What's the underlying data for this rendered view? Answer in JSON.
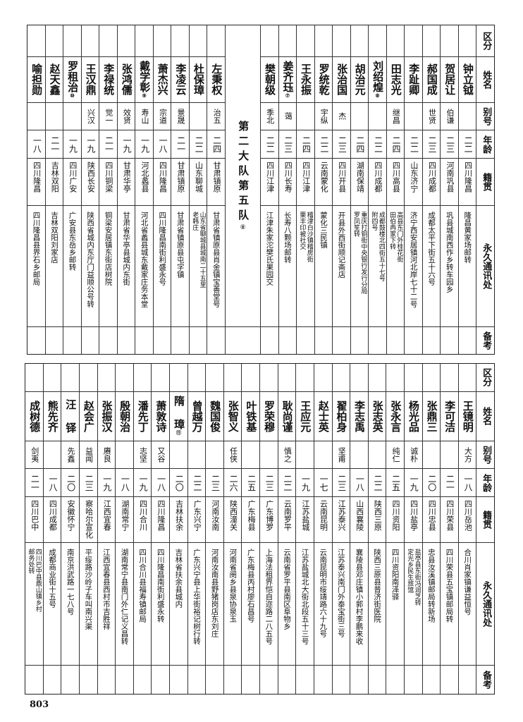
{
  "headers": [
    "区分",
    "姓名",
    "别号",
    "年龄",
    "籍贯",
    "永久通讯处",
    "备考"
  ],
  "top_table": {
    "section_label": "第二大队第五队",
    "section_note": "⑧",
    "right_rows": [
      {
        "name": "钟立钺",
        "note": "",
        "alias": "",
        "age": "二二",
        "native": "四川隆昌",
        "address": "隆昌黄家场邮转",
        "remark": ""
      },
      {
        "name": "贺居让",
        "note": "",
        "alias": "伯谦",
        "age": "二三",
        "native": "河南巩县",
        "address": "巩县城南西作乡转车园乡",
        "remark": ""
      },
      {
        "name": "郝国成",
        "note": "",
        "alias": "世贤",
        "age": "二三",
        "native": "四川成都",
        "address": "成都太平下街五十六号",
        "remark": ""
      },
      {
        "name": "李趾卿",
        "note": "",
        "alias": "",
        "age": "二二",
        "native": "山东济宁",
        "address": "济宁西安居镇河北岸七十二号",
        "remark": ""
      },
      {
        "name": "田志光",
        "note": "",
        "alias": "继昌",
        "age": "二四",
        "native": "四川高县",
        "address": "高县东门外桂花街\n田伯冉家下转",
        "remark": ""
      },
      {
        "name": "刘绍煌",
        "note": "⑧",
        "alias": "",
        "age": "二二",
        "native": "四川成都",
        "address": "成都鼓楼北四街五十七号\n附四号",
        "remark": ""
      },
      {
        "name": "胡治元",
        "note": "",
        "alias": "",
        "age": "二四",
        "native": "湖南保靖",
        "address": "重庆打铜街中央银行发行分局\n罗凤笙转",
        "remark": ""
      },
      {
        "name": "张治国",
        "note": "",
        "alias": "杰",
        "age": "二三",
        "native": "四川开县",
        "address": "开县外西街顺记斋店",
        "remark": ""
      },
      {
        "name": "罗统乾",
        "note": "",
        "alias": "宇纵",
        "age": "二二",
        "native": "云南蒙化",
        "address": "蒙化三民镇",
        "remark": ""
      },
      {
        "name": "王永振",
        "note": "",
        "alias": "",
        "age": "二四",
        "native": "四川江津",
        "address": "稽津白沙镇稽房街\n栗丰印被社交",
        "remark": ""
      },
      {
        "name": "姜齐珏",
        "note": "⑦",
        "alias": "蔼",
        "age": "二三",
        "native": "四川长寿",
        "address": "长寿八颗场邮转",
        "remark": ""
      },
      {
        "name": "樊朝级",
        "note": "",
        "alias": "季北",
        "age": "二二",
        "native": "四川江津",
        "address": "江津朱家沱樊氏果园交",
        "remark": ""
      }
    ],
    "left_rows": [
      {
        "name": "左秉权",
        "note": "",
        "alias": "治五",
        "age": "二四",
        "native": "甘肃镇原",
        "address": "甘肃省镇原县肖金镇宝善堂号",
        "remark": ""
      },
      {
        "name": "杜保璋",
        "note": "",
        "alias": "",
        "age": "二二",
        "native": "山东聊城",
        "address": "山东省聊城县城南二十五里\n老韩庄",
        "remark": ""
      },
      {
        "name": "李凌云",
        "note": "",
        "alias": "景晟",
        "age": "二一",
        "native": "甘肃镇原",
        "address": "甘肃省镇原县屯字镇",
        "remark": ""
      },
      {
        "name": "萧杰兴",
        "note": "",
        "alias": "宗道",
        "age": "一八",
        "native": "四川隆昌",
        "address": "四川隆昌南街利盛永号",
        "remark": ""
      },
      {
        "name": "戴学彰",
        "note": "⑨",
        "alias": "寿山",
        "age": "一九",
        "native": "河北蠡县",
        "address": "河北省蠡县城东戴家庄务本堂",
        "remark": ""
      },
      {
        "name": "张鸿儒",
        "note": "",
        "alias": "效贤",
        "age": "一九",
        "native": "甘肃华亭",
        "address": "甘肃省华亭县城内东街",
        "remark": ""
      },
      {
        "name": "李禄统",
        "note": "",
        "alias": "觉一",
        "age": "二一",
        "native": "四川铜梁",
        "address": "铜梁安居镇东街店树院",
        "remark": ""
      },
      {
        "name": "王汉鼎",
        "note": "",
        "alias": "兴汉",
        "age": "一九",
        "native": "陕西长安",
        "address": "陕西省城内东厅门益顺公号转",
        "remark": ""
      },
      {
        "name": "罗租治",
        "note": "⑩",
        "alias": "",
        "age": "一九",
        "native": "四川广安",
        "address": "广安县东岳乡邮转",
        "remark": ""
      },
      {
        "name": "赵天鑫",
        "note": "",
        "alias": "",
        "age": "二一",
        "native": "吉林双阳",
        "address": "吉林双阳刘家店",
        "remark": ""
      },
      {
        "name": "喻担勋",
        "note": "",
        "alias": "",
        "age": "一八",
        "native": "四川隆昌",
        "address": "四川隆昌县界石乡邮局",
        "remark": ""
      }
    ]
  },
  "bottom_table": {
    "rows": [
      {
        "name": "王镜明",
        "note": "",
        "alias": "大方",
        "age": "一八",
        "native": "四川岳池",
        "address": "合川肖家镇谦益恒号",
        "remark": ""
      },
      {
        "name": "李可洁",
        "note": "",
        "alias": "",
        "age": "二一",
        "native": "四川荣县",
        "address": "四川荣县五宝镇邮局转",
        "remark": ""
      },
      {
        "name": "张鼎三",
        "note": "",
        "alias": "",
        "age": "二〇",
        "native": "四川忠县",
        "address": "忠县汝溪镇邮局转新场",
        "remark": ""
      },
      {
        "name": "杨光品",
        "note": "",
        "alias": "诚朴",
        "age": "一九",
        "native": "四川盐亭",
        "address": "盐亭县东街冯润芝转\n定光乡民生旅馆",
        "remark": ""
      },
      {
        "name": "张永言",
        "note": "",
        "alias": "纯仁",
        "age": "二五",
        "native": "四川资阳",
        "address": "四川资阳南泽驿",
        "remark": ""
      },
      {
        "name": "张志英",
        "note": "",
        "alias": "",
        "age": "二二",
        "native": "陕西三原",
        "address": "陕西三原县普济街医院",
        "remark": ""
      },
      {
        "name": "李志禹",
        "note": "",
        "alias": "",
        "age": "一八",
        "native": "山西襄陵",
        "address": "襄陵县邓庄镇小郭村李鹏来收",
        "remark": ""
      },
      {
        "name": "翟柏身",
        "note": "",
        "alias": "坚甫",
        "age": "二三",
        "native": "江苏泰兴",
        "address": "江苏泰兴南门外泰宝街三号",
        "remark": ""
      },
      {
        "name": "赵士英",
        "note": "",
        "alias": "",
        "age": "一七",
        "native": "云南昆明",
        "address": "云南昆明市绥靖路六十九号",
        "remark": ""
      },
      {
        "name": "王应元",
        "note": "",
        "alias": "",
        "age": "一九",
        "native": "江苏盐城",
        "address": "江苏盐城北大街北段五十三号",
        "remark": ""
      },
      {
        "name": "耿尚谨",
        "note": "",
        "alias": "慎之",
        "age": "二二",
        "native": "云南罗平",
        "address": "云南省罗平县南区阜物乡",
        "remark": ""
      },
      {
        "name": "罗荣穆",
        "note": "",
        "alias": "",
        "age": "二三",
        "native": "广东博罗",
        "address": "上海法租界恺自迩路二八五号",
        "remark": ""
      },
      {
        "name": "叶铁基",
        "note": "",
        "alias": "",
        "age": "二五",
        "native": "广东梅县",
        "address": "广东梅县丙村廖石昌号",
        "remark": ""
      },
      {
        "name": "张智义",
        "note": "",
        "alias": "任侠",
        "age": "二六",
        "native": "陕西潼关",
        "address": "河南省阌乡县泉协泉玉",
        "remark": ""
      },
      {
        "name": "魏国俊",
        "note": "",
        "alias": "",
        "age": "二三",
        "native": "河南汝南",
        "address": "河南汝南县野猪岗店东刘庄",
        "remark": ""
      },
      {
        "name": "曾越万",
        "note": "",
        "alias": "",
        "age": "二二",
        "native": "广东兴宁",
        "address": "广东兴宁县上华街裕记树行转",
        "remark": ""
      },
      {
        "name": "隋 璋",
        "note": "⑪",
        "alias": "",
        "age": "二〇",
        "native": "吉林扶余",
        "address": "吉林省扶余县城内",
        "remark": ""
      },
      {
        "name": "萧敦诗",
        "note": "",
        "alias": "又谷",
        "age": "一八",
        "native": "四川隆昌",
        "address": "四川隆昌南街利盛永转",
        "remark": ""
      },
      {
        "name": "潘先丁",
        "note": "",
        "alias": "志坚",
        "age": "一九",
        "native": "四川合川",
        "address": "四川合川县福寿镇邮局",
        "remark": ""
      },
      {
        "name": "殷朝治",
        "note": "",
        "alias": "",
        "age": "一八",
        "native": "湖南常宁",
        "address": "湖南常宁县南门外仁记义昌转",
        "remark": ""
      },
      {
        "name": "张振汉",
        "note": "",
        "alias": "赓良",
        "age": "一九",
        "native": "江西宜春",
        "address": "江西宜春县西村市吉胜祥",
        "remark": ""
      },
      {
        "name": "赵会广",
        "note": "",
        "alias": "益闻",
        "age": "二三",
        "native": "察哈尔宣化",
        "address": "平绥路沙岭子车叫南兴渠",
        "remark": ""
      },
      {
        "name": "汪 铎",
        "note": "",
        "alias": "先鑫",
        "age": "二〇",
        "native": "安徽怀宁",
        "address": "南京洪武路一七八号",
        "remark": ""
      },
      {
        "name": "熊先齐",
        "note": "",
        "alias": "",
        "age": "一八",
        "native": "四川成都",
        "address": "成都商业街十五号",
        "remark": ""
      },
      {
        "name": "成树德",
        "note": "",
        "alias": "剑夷",
        "age": "二一",
        "native": "四川巴中",
        "address": "四川巴中县鼎山镇乡村\n邮务处转",
        "remark": ""
      }
    ]
  },
  "page_number": "803"
}
